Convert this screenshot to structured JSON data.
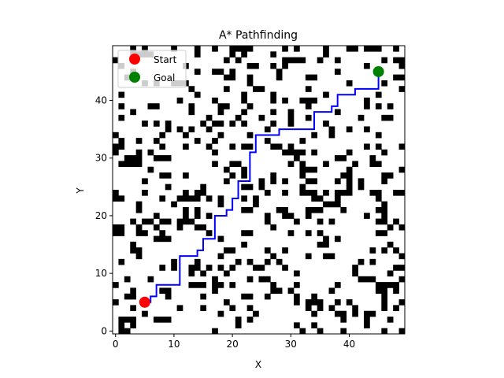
{
  "chart_data": {
    "type": "heatmap",
    "title": "A* Pathfinding",
    "xlabel": "X",
    "ylabel": "Y",
    "xlim": [
      -0.5,
      49.5
    ],
    "ylim": [
      -0.5,
      49.5
    ],
    "x_ticks": [
      0,
      10,
      20,
      30,
      40
    ],
    "y_ticks": [
      0,
      10,
      20,
      30,
      40
    ],
    "grid": false,
    "legend_position": "upper-left",
    "colormap": {
      "free": "#ffffff",
      "obstacle": "#000000"
    },
    "grid_size": [
      50,
      50
    ],
    "obstacle_density": 0.2,
    "start": {
      "label": "Start",
      "x": 5,
      "y": 5,
      "color": "#ff0000"
    },
    "goal": {
      "label": "Goal",
      "x": 45,
      "y": 45,
      "color": "#008000"
    },
    "path": {
      "color": "#0000ff",
      "points": [
        [
          5,
          5
        ],
        [
          6,
          5
        ],
        [
          6,
          6
        ],
        [
          7,
          6
        ],
        [
          7,
          8
        ],
        [
          11,
          8
        ],
        [
          11,
          13
        ],
        [
          14,
          13
        ],
        [
          14,
          14
        ],
        [
          15,
          14
        ],
        [
          15,
          16
        ],
        [
          17,
          16
        ],
        [
          17,
          20
        ],
        [
          19,
          20
        ],
        [
          19,
          21
        ],
        [
          20,
          21
        ],
        [
          20,
          23
        ],
        [
          21,
          23
        ],
        [
          21,
          26
        ],
        [
          23,
          26
        ],
        [
          23,
          31
        ],
        [
          24,
          31
        ],
        [
          24,
          34
        ],
        [
          28,
          34
        ],
        [
          28,
          35
        ],
        [
          34,
          35
        ],
        [
          34,
          38
        ],
        [
          37,
          38
        ],
        [
          37,
          39
        ],
        [
          38,
          39
        ],
        [
          38,
          41
        ],
        [
          41,
          41
        ],
        [
          41,
          42
        ],
        [
          45,
          42
        ],
        [
          45,
          45
        ]
      ]
    }
  }
}
